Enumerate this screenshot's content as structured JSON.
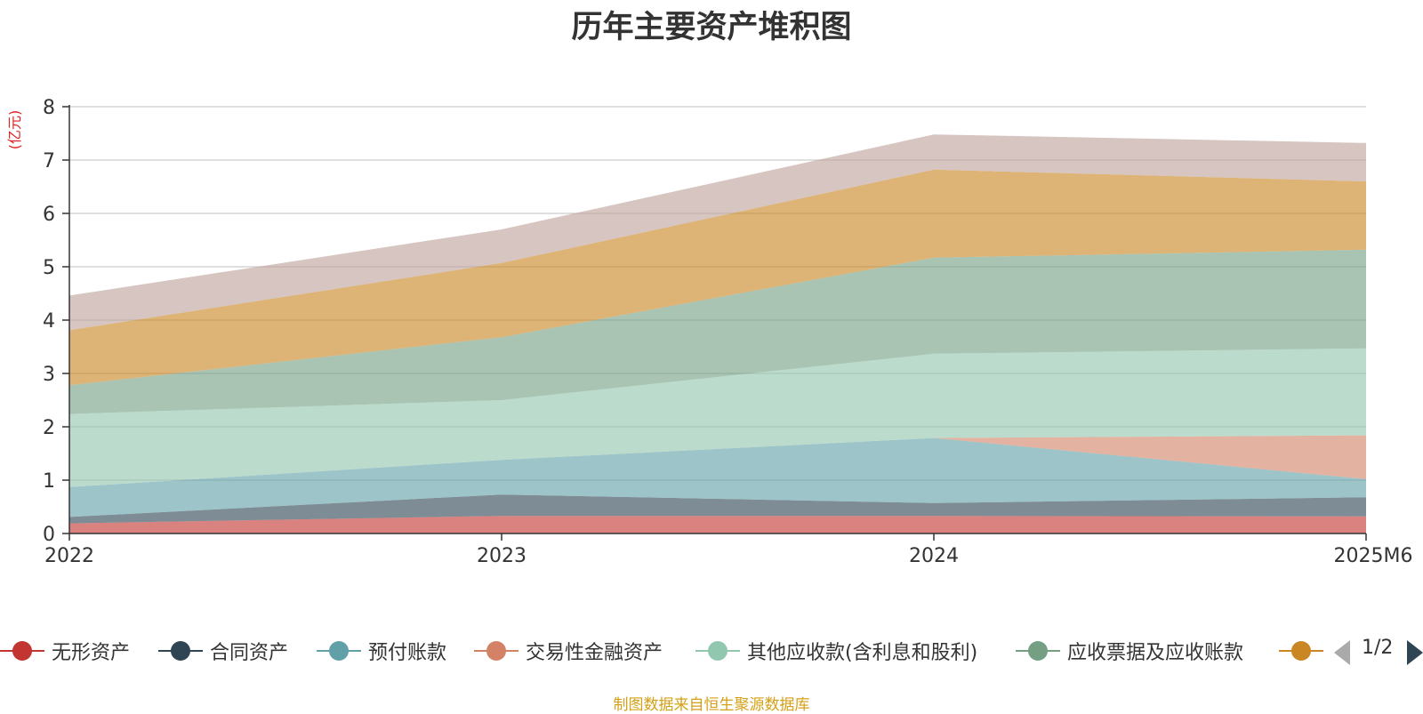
{
  "title": "历年主要资产堆积图",
  "unit": "(亿元)",
  "source": "制图数据来自恒生聚源数据库",
  "pager": {
    "text": "1/2"
  },
  "chart_data": {
    "type": "area",
    "stacked": true,
    "categories": [
      "2022",
      "2023",
      "2024",
      "2025M6"
    ],
    "ylim": [
      0,
      8
    ],
    "yticks": [
      0,
      1,
      2,
      3,
      4,
      5,
      6,
      7,
      8
    ],
    "grid": true,
    "legend_position": "bottom",
    "series": [
      {
        "name": "无形资产",
        "color": "#c23531",
        "values": [
          0.19,
          0.33,
          0.33,
          0.32
        ]
      },
      {
        "name": "合同资产",
        "color": "#2f4554",
        "values": [
          0.12,
          0.4,
          0.24,
          0.36
        ]
      },
      {
        "name": "预付账款",
        "color": "#61a0a8",
        "values": [
          0.56,
          0.65,
          1.22,
          0.34
        ]
      },
      {
        "name": "交易性金融资产",
        "color": "#d48265",
        "values": [
          0.0,
          0.0,
          0.0,
          0.82
        ]
      },
      {
        "name": "其他应收款(含利息和股利)",
        "color": "#91c7ae",
        "values": [
          1.37,
          1.12,
          1.58,
          1.63
        ]
      },
      {
        "name": "应收票据及应收账款",
        "color": "#749f83",
        "values": [
          0.54,
          1.18,
          1.8,
          1.85
        ]
      },
      {
        "name": "",
        "color": "#ca8622",
        "values": [
          1.03,
          1.39,
          1.65,
          1.28
        ]
      },
      {
        "name": "",
        "color": "#bda29a",
        "values": [
          0.65,
          0.63,
          0.66,
          0.72
        ]
      }
    ]
  }
}
